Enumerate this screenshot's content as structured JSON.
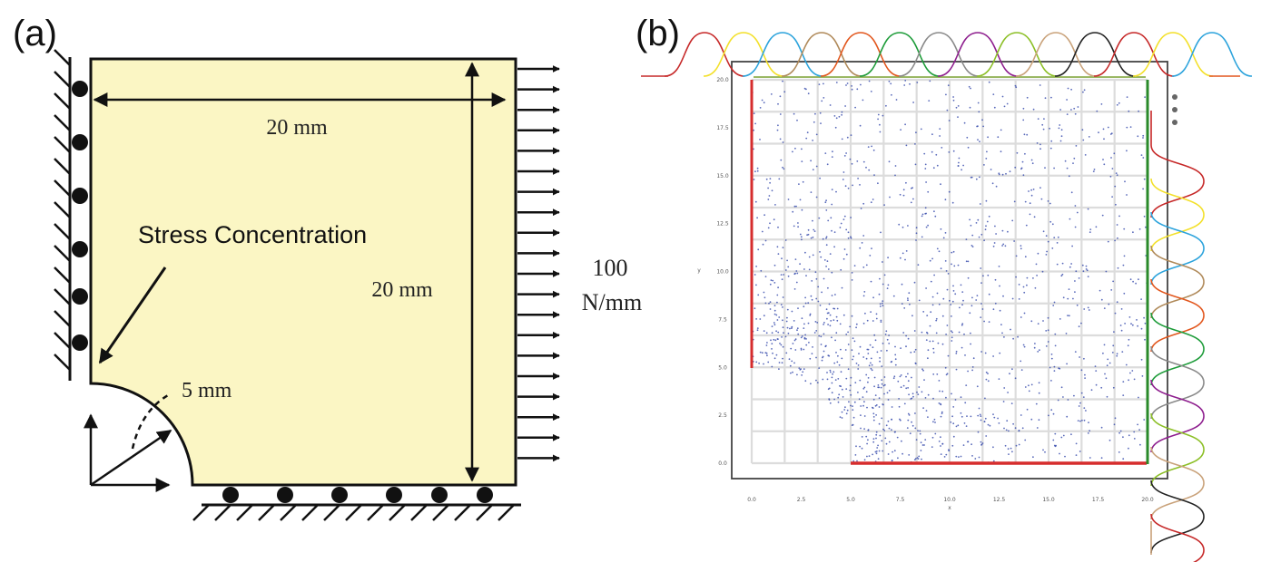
{
  "panel_a": {
    "label": "(a)",
    "width_label": "20 mm",
    "height_label": "20 mm",
    "radius_label": "5 mm",
    "annotation": "Stress Concentration",
    "load_value": "100",
    "load_unit": "N/mm",
    "colors": {
      "plate": "#fbf6c4",
      "stroke": "#111111"
    }
  },
  "panel_b": {
    "label": "(b)",
    "x_ticks": [
      "0.0",
      "2.5",
      "5.0",
      "7.5",
      "10.0",
      "12.5",
      "15.0",
      "17.5",
      "20.0"
    ],
    "y_ticks": [
      "0.0",
      "2.5",
      "5.0",
      "7.5",
      "10.0",
      "12.5",
      "15.0",
      "17.5",
      "20.0"
    ],
    "x_axis_label": "x",
    "y_axis_label": "y",
    "colors": {
      "points": "#3b4fae",
      "grid": "#d9d9d9",
      "boundary_red": "#d62d2d",
      "boundary_green": "#2a8a2a",
      "basis_curves": [
        "#c62828",
        "#f3e02a",
        "#2ca3dc",
        "#b08a5a",
        "#e2571e",
        "#1e9c3a",
        "#8a8a8a",
        "#8e1e8e",
        "#8cbf26",
        "#c9a27a",
        "#222222"
      ]
    }
  }
}
